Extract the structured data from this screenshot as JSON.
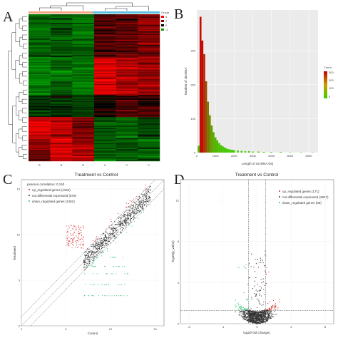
{
  "panels": {
    "A": {
      "letter": "A"
    },
    "B": {
      "letter": "B"
    },
    "C": {
      "letter": "C"
    },
    "D": {
      "letter": "D"
    }
  },
  "chart_data": [
    {
      "type": "heatmap",
      "panel": "A",
      "legend": {
        "title": "Group",
        "values": [
          "4",
          "2",
          "0",
          "-2"
        ]
      },
      "columns": [
        "B",
        "B",
        "B",
        "C",
        "C",
        "C"
      ],
      "colors": {
        "high": "#ff0000",
        "mid": "#000000",
        "low": "#00a000"
      }
    },
    {
      "type": "bar",
      "panel": "B",
      "xlabel": "Length of circRNA (nt)",
      "ylabel": "Number of circRNA",
      "xticks": [
        "0",
        "1000",
        "2000",
        "3000",
        "4000",
        "5000",
        "6000"
      ],
      "yticks": [
        "0",
        "100",
        "200",
        "300"
      ],
      "xlim": [
        0,
        6500
      ],
      "ylim": [
        0,
        420
      ],
      "legend": {
        "title": "Count",
        "values": [
          "300",
          "200",
          "100",
          "5"
        ]
      },
      "x": [
        100,
        200,
        300,
        400,
        500,
        600,
        700,
        800,
        900,
        1000,
        1100,
        1200,
        1300,
        1400,
        1500,
        1600,
        1700,
        1800,
        1900,
        2000,
        2200,
        2400,
        2600,
        2800,
        3000,
        3300,
        3600,
        4000,
        4500,
        5000,
        5600,
        6200
      ],
      "values": [
        20,
        400,
        330,
        290,
        210,
        150,
        110,
        80,
        60,
        45,
        36,
        28,
        22,
        18,
        15,
        12,
        10,
        9,
        8,
        7,
        6,
        5,
        4,
        4,
        3,
        3,
        2,
        2,
        2,
        1,
        1,
        1
      ]
    },
    {
      "type": "scatter",
      "panel": "C",
      "title": "Treatment vs Control",
      "xlabel": "Control",
      "ylabel": "Treatment",
      "xticks": [
        "0",
        "5",
        "10",
        "15"
      ],
      "yticks": [
        "0",
        "5",
        "10",
        "15"
      ],
      "xlim": [
        0,
        16
      ],
      "ylim": [
        0,
        16
      ],
      "annotation": "pearson correlation: 0.153",
      "series": [
        {
          "name": "up_regulated genes (1163)",
          "color": "#d22828"
        },
        {
          "name": "not differential expressed (679)",
          "color": "#333333"
        },
        {
          "name": "down_regulated genes (1262)",
          "color": "#2fbf71"
        }
      ]
    },
    {
      "type": "scatter",
      "panel": "D",
      "title": "Treatment vs Control",
      "xlabel": "log2(Fold Change)",
      "ylabel": "-log10(p_value)",
      "xticks": [
        "-8",
        "-4",
        "0",
        "4",
        "8"
      ],
      "yticks": [
        "0",
        "4",
        "8",
        "12"
      ],
      "xlim": [
        -9,
        9
      ],
      "ylim": [
        0,
        14
      ],
      "series": [
        {
          "name": "up_regulated genes (171)",
          "color": "#d22828"
        },
        {
          "name": "not differential expressed (2847)",
          "color": "#333333"
        },
        {
          "name": "down_regulated genes (86)",
          "color": "#2fbf71"
        }
      ]
    }
  ]
}
